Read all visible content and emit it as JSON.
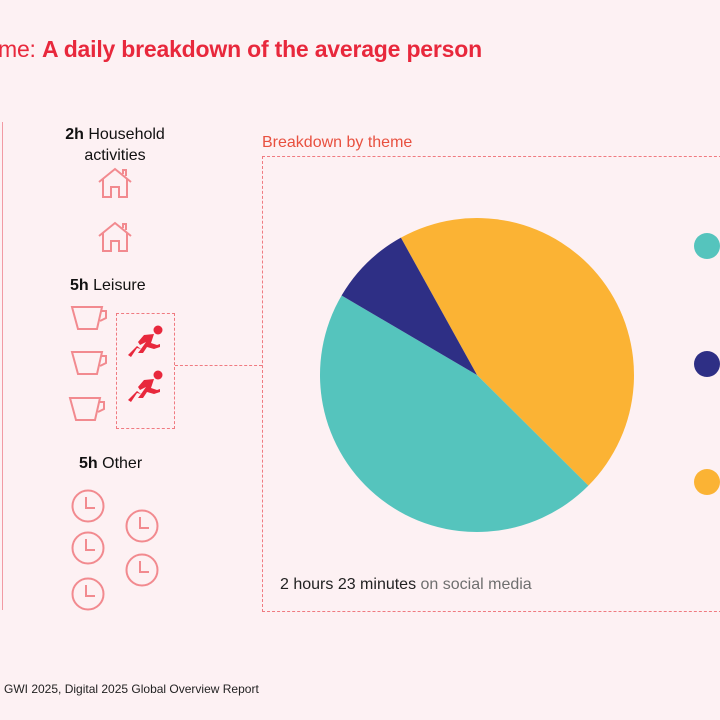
{
  "header": {
    "title_lead": "me:",
    "title_bold": "A daily breakdown of the average person"
  },
  "categories": [
    {
      "hours": "2h",
      "label": "Household",
      "label2": "activities",
      "icon": "house-icon"
    },
    {
      "hours": "5h",
      "label": "Leisure",
      "icon": "cup-icon"
    },
    {
      "hours": "5h",
      "label": "Other",
      "icon": "clock-icon"
    }
  ],
  "breakdown": {
    "label": "Breakdown by theme",
    "social_bold": "2 hours 23 minutes",
    "social_rest": " on social media"
  },
  "colors": {
    "accent": "#e8283c",
    "teal": "#55c4bd",
    "navy": "#2e2f85",
    "yellow": "#fbb334",
    "background": "#fdf1f3"
  },
  "chart_data": {
    "type": "pie",
    "slices": [
      {
        "color": "#fbb334",
        "value": 45.5
      },
      {
        "color": "#55c4bd",
        "value": 46
      },
      {
        "color": "#2e2f85",
        "value": 8.5
      }
    ],
    "start_angle_deg": 331
  },
  "footer": {
    "source": "GWI 2025, Digital 2025 Global Overview Report"
  }
}
